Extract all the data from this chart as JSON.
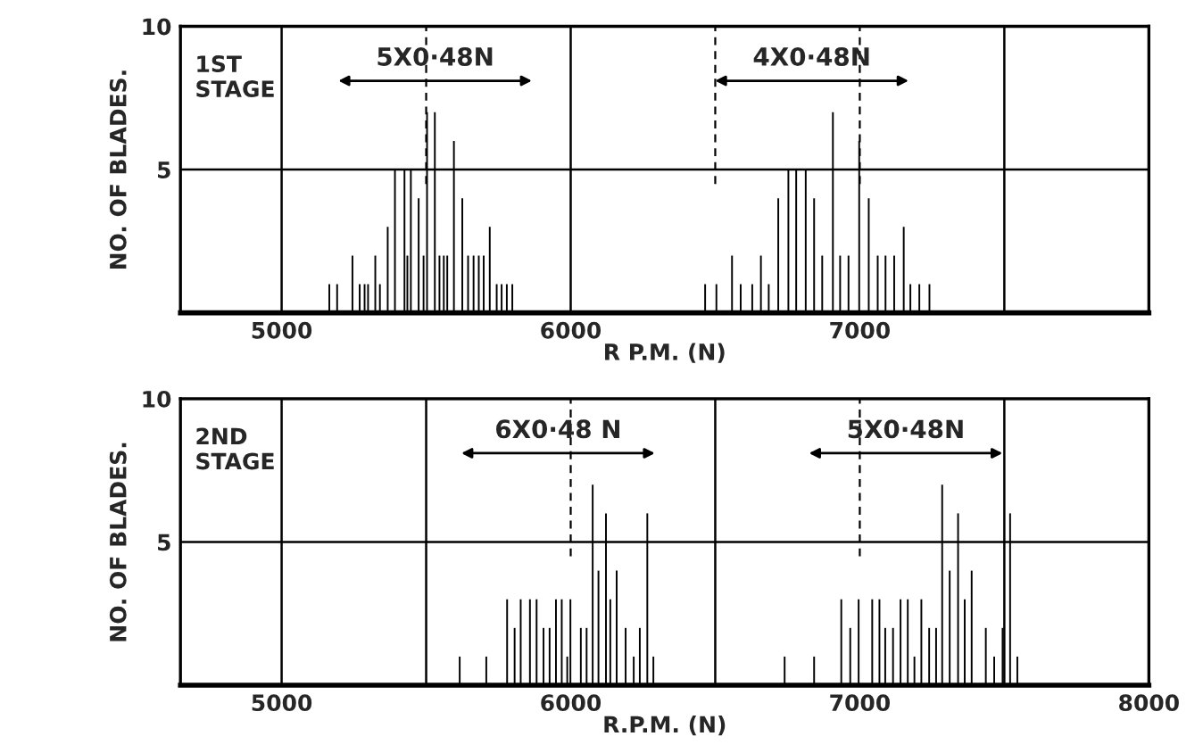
{
  "chart_data": [
    {
      "type": "bar",
      "xlabel": "R P.M. (N)",
      "ylabel": "NO. OF BLADES.",
      "color": "#000000",
      "x": [
        5165,
        5192,
        5245,
        5270,
        5287,
        5299,
        5324,
        5340,
        5367,
        5392,
        5425,
        5435,
        5447,
        5474,
        5491,
        5503,
        5530,
        5546,
        5561,
        5573,
        5596,
        5625,
        5645,
        5664,
        5682,
        5699,
        5720,
        5744,
        5761,
        5779,
        5798,
        6465,
        6504,
        6558,
        6588,
        6628,
        6658,
        6685,
        6718,
        6753,
        6780,
        6813,
        6842,
        6870,
        6907,
        6932,
        6961,
        6998,
        7031,
        7062,
        7089,
        7119,
        7152,
        7175,
        7206,
        7241
      ],
      "values": [
        1,
        1,
        2,
        1,
        1,
        1,
        2,
        1,
        3,
        5,
        5,
        2,
        5,
        4,
        2,
        7,
        7,
        2,
        2,
        2,
        6,
        4,
        2,
        2,
        2,
        2,
        3,
        1,
        1,
        1,
        1,
        1,
        1,
        2,
        1,
        1,
        2,
        1,
        4,
        5,
        5,
        5,
        4,
        2,
        7,
        2,
        2,
        6,
        4,
        2,
        2,
        2,
        3,
        1,
        1,
        1
      ],
      "xlim": [
        4650,
        8000
      ],
      "xticks": [
        5000,
        6000,
        7000
      ],
      "ylim": [
        0,
        10
      ],
      "yticks": [
        5,
        10
      ],
      "grid": "y",
      "ref_lines": [
        {
          "axis": "x",
          "value": 5000
        },
        {
          "axis": "x",
          "value": 6000
        },
        {
          "axis": "x",
          "value": 7500
        },
        {
          "axis": "x",
          "value": 5500,
          "line_style": "dashed"
        },
        {
          "axis": "x",
          "value": 6500,
          "line_style": "dashed"
        },
        {
          "axis": "x",
          "value": 7000,
          "line_style": "dashed"
        }
      ],
      "annotations": [
        "1ST\nSTAGE",
        "5X0·48N",
        "4X0·48N"
      ]
    },
    {
      "type": "bar",
      "xlabel": "R.P.M. (N)",
      "ylabel": "NO. OF BLADES.",
      "color": "#000000",
      "x": [
        5616,
        5708,
        5780,
        5806,
        5827,
        5859,
        5882,
        5906,
        5927,
        5949,
        5969,
        5988,
        5999,
        6035,
        6055,
        6076,
        6096,
        6122,
        6137,
        6159,
        6190,
        6218,
        6239,
        6265,
        6286,
        6740,
        6842,
        6936,
        6967,
        6996,
        7043,
        7068,
        7088,
        7115,
        7141,
        7166,
        7189,
        7213,
        7240,
        7264,
        7285,
        7311,
        7340,
        7363,
        7387,
        7436,
        7465,
        7494,
        7520,
        7545
      ],
      "values": [
        1,
        1,
        3,
        2,
        3,
        3,
        3,
        2,
        2,
        3,
        3,
        1,
        3,
        2,
        2,
        7,
        4,
        6,
        3,
        4,
        2,
        1,
        2,
        6,
        1,
        1,
        1,
        3,
        2,
        3,
        3,
        3,
        2,
        2,
        3,
        3,
        1,
        3,
        2,
        2,
        7,
        4,
        6,
        3,
        4,
        2,
        1,
        2,
        6,
        1
      ],
      "xlim": [
        4650,
        8000
      ],
      "xticks": [
        5000,
        6000,
        7000,
        8000
      ],
      "ylim": [
        0,
        10
      ],
      "yticks": [
        5,
        10
      ],
      "grid": "y",
      "ref_lines": [
        {
          "axis": "x",
          "value": 5000
        },
        {
          "axis": "x",
          "value": 5500
        },
        {
          "axis": "x",
          "value": 6500
        },
        {
          "axis": "x",
          "value": 7500
        },
        {
          "axis": "x",
          "value": 6000,
          "line_style": "dashed"
        },
        {
          "axis": "x",
          "value": 7000,
          "line_style": "dashed"
        }
      ],
      "annotations": [
        "2ND\nSTAGE",
        "6X0·48 N",
        "5X0·48N"
      ]
    }
  ]
}
